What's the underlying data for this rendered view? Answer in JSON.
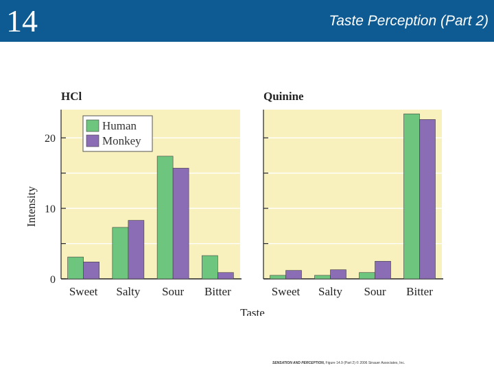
{
  "slide": {
    "number": "14",
    "title": "Taste Perception (Part 2)",
    "credit_book": "SENSATION AND PERCEPTION,",
    "credit_rest": "Figure 14.9 (Part 2) © 2006 Sinauer Associates, Inc."
  },
  "colors": {
    "header": "#0d5b92",
    "panel_bg": "#f8f0bd",
    "human": "#6dc57e",
    "monkey": "#8b6db5",
    "bar_edge": "#3f3f3f"
  },
  "chart_data": {
    "type": "bar",
    "shared": {
      "ylabel": "Intensity",
      "xlabel": "Taste",
      "ylim": [
        0,
        24
      ],
      "yticks": [
        0,
        10,
        20
      ],
      "minor_yticks": [
        5,
        15
      ],
      "legend": {
        "placement": "top-left",
        "entries": [
          "Human",
          "Monkey"
        ]
      }
    },
    "panels": [
      {
        "title": "HCl",
        "categories": [
          "Sweet",
          "Salty",
          "Sour",
          "Bitter"
        ],
        "series": [
          {
            "name": "Human",
            "values": [
              3.1,
              7.3,
              17.4,
              3.3
            ]
          },
          {
            "name": "Monkey",
            "values": [
              2.4,
              8.3,
              15.7,
              0.9
            ]
          }
        ]
      },
      {
        "title": "Quinine",
        "categories": [
          "Sweet",
          "Salty",
          "Sour",
          "Bitter"
        ],
        "series": [
          {
            "name": "Human",
            "values": [
              0.5,
              0.5,
              0.9,
              23.4
            ]
          },
          {
            "name": "Monkey",
            "values": [
              1.2,
              1.3,
              2.5,
              22.6
            ]
          }
        ]
      }
    ]
  }
}
